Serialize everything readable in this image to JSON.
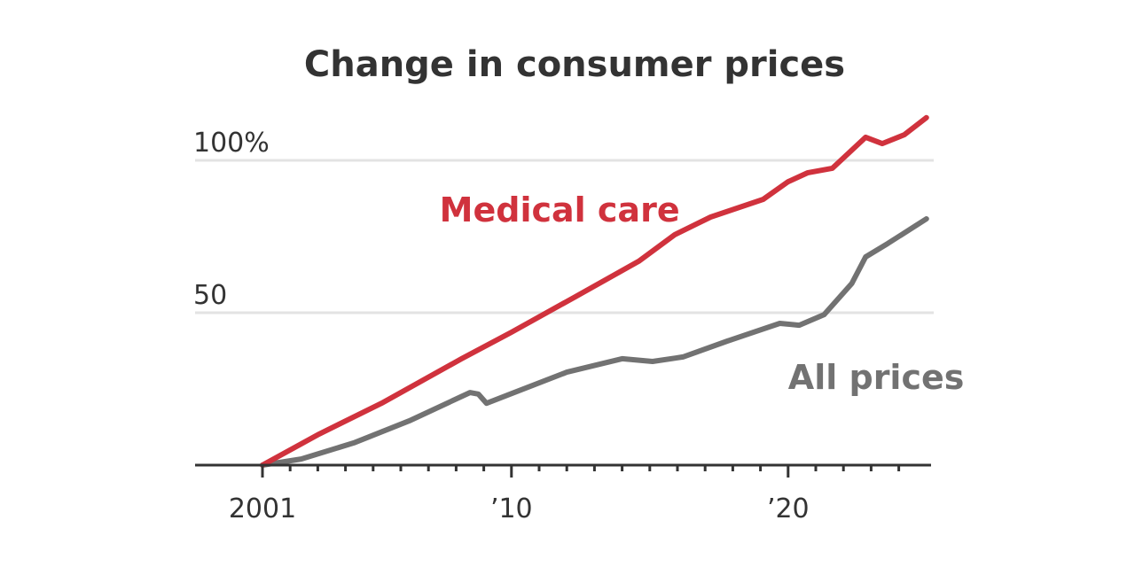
{
  "chart_data": {
    "type": "line",
    "title": "Change in consumer prices",
    "xlabel": "",
    "ylabel": "",
    "xlim": [
      1998.5,
      2026.0
    ],
    "ylim": [
      0,
      115
    ],
    "grid": true,
    "y_ticks": [
      {
        "value": 50,
        "label": "50"
      },
      {
        "value": 100,
        "label": "100%"
      }
    ],
    "x_major_ticks": [
      {
        "value": 2001,
        "label": "2001"
      },
      {
        "value": 2010,
        "label": "’10"
      },
      {
        "value": 2020,
        "label": "’20"
      }
    ],
    "x_minor_ticks": [
      2002,
      2003,
      2004,
      2005,
      2006,
      2007,
      2008,
      2009,
      2011,
      2012,
      2013,
      2014,
      2015,
      2016,
      2017,
      2018,
      2019,
      2021,
      2022,
      2023,
      2024
    ],
    "series": [
      {
        "name": "Medical care",
        "color": "#d0323d",
        "label_anchor": {
          "x": 2007.4,
          "y": 80
        },
        "x": [
          2001.0,
          2003.05,
          2005.3,
          2008.2,
          2010.0,
          2012.3,
          2014.6,
          2015.9,
          2017.2,
          2019.1,
          2020.0,
          2020.7,
          2021.6,
          2022.8,
          2023.4,
          2024.2,
          2025.0
        ],
        "values": [
          0,
          10.2,
          20.3,
          34.9,
          43.6,
          55.2,
          66.9,
          75.6,
          81.4,
          87.2,
          93.0,
          95.9,
          97.4,
          107.6,
          105.5,
          108.4,
          114.0
        ]
      },
      {
        "name": "All prices",
        "color": "#727272",
        "label_anchor": {
          "x": 2020.0,
          "y": 25
        },
        "x": [
          2001.0,
          2002.4,
          2004.3,
          2006.3,
          2008.5,
          2008.8,
          2009.1,
          2010.1,
          2012.0,
          2014.0,
          2015.1,
          2016.2,
          2017.8,
          2019.7,
          2020.4,
          2021.3,
          2022.3,
          2022.8,
          2023.6,
          2025.0
        ],
        "values": [
          0,
          2.0,
          7.3,
          14.5,
          23.8,
          23.3,
          20.3,
          23.8,
          30.5,
          34.9,
          34.0,
          35.5,
          40.7,
          46.5,
          45.9,
          49.4,
          59.6,
          68.3,
          72.7,
          80.8
        ]
      }
    ]
  },
  "colors": {
    "text": "#333333",
    "grid": "#e3e3e3",
    "axis": "#333333"
  }
}
